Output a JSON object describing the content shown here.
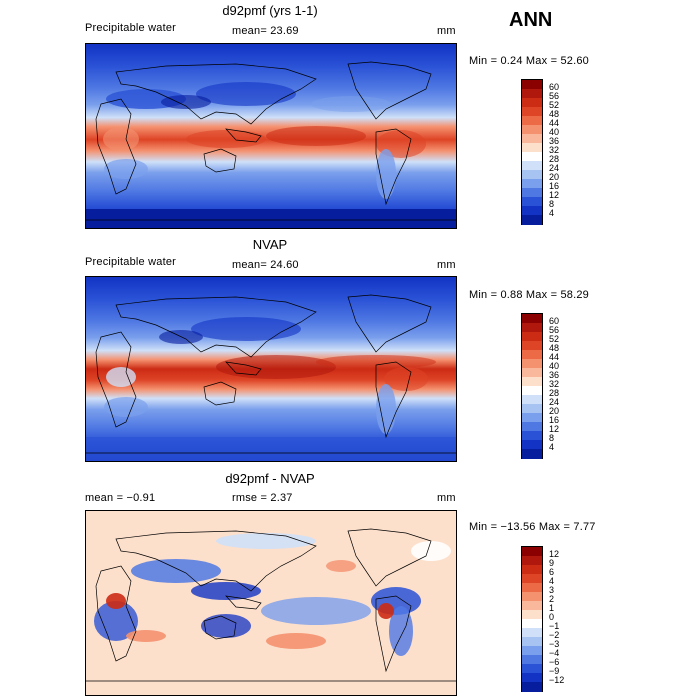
{
  "season": "ANN",
  "panels": [
    {
      "title": "d92pmf (yrs 1-1)",
      "left_label": "Precipitable water",
      "mid_label": "mean=   23.69",
      "units": "mm",
      "minmax": "Min =    0.24  Max =   52.60",
      "colorbar": {
        "labels": [
          "60",
          "56",
          "52",
          "48",
          "44",
          "40",
          "36",
          "32",
          "28",
          "24",
          "20",
          "16",
          "12",
          "8",
          "4"
        ],
        "colors": [
          "#8b0000",
          "#b0170d",
          "#cc2b14",
          "#de4426",
          "#ec6a46",
          "#f4916f",
          "#f9b89c",
          "#fde0cc",
          "#ffffff",
          "#cfe0f8",
          "#a6c3f2",
          "#7a9fec",
          "#4f78e3",
          "#2a52d6",
          "#1233c4",
          "#061d9e"
        ]
      }
    },
    {
      "title": "NVAP",
      "left_label": "Precipitable water",
      "mid_label": "mean=   24.60",
      "units": "mm",
      "minmax": "Min =    0.88  Max =   58.29",
      "colorbar": {
        "labels": [
          "60",
          "56",
          "52",
          "48",
          "44",
          "40",
          "36",
          "32",
          "28",
          "24",
          "20",
          "16",
          "12",
          "8",
          "4"
        ],
        "colors": [
          "#8b0000",
          "#b0170d",
          "#cc2b14",
          "#de4426",
          "#ec6a46",
          "#f4916f",
          "#f9b89c",
          "#fde0cc",
          "#ffffff",
          "#cfe0f8",
          "#a6c3f2",
          "#7a9fec",
          "#4f78e3",
          "#2a52d6",
          "#1233c4",
          "#061d9e"
        ]
      }
    },
    {
      "title": "d92pmf - NVAP",
      "left_label": "mean =   −0.91",
      "mid_label": "rmse =    2.37",
      "units": "mm",
      "minmax": "Min = −13.56  Max =    7.77",
      "colorbar": {
        "labels": [
          "12",
          "9",
          "6",
          "4",
          "3",
          "2",
          "1",
          "0",
          "−1",
          "−2",
          "−3",
          "−4",
          "−6",
          "−9",
          "−12"
        ],
        "colors": [
          "#8b0000",
          "#b0170d",
          "#cc2b14",
          "#de4426",
          "#ec6a46",
          "#f4916f",
          "#f9b89c",
          "#fde0cc",
          "#ffffff",
          "#cfe0f8",
          "#a6c3f2",
          "#7a9fec",
          "#4f78e3",
          "#2a52d6",
          "#1233c4",
          "#061d9e"
        ]
      }
    }
  ]
}
